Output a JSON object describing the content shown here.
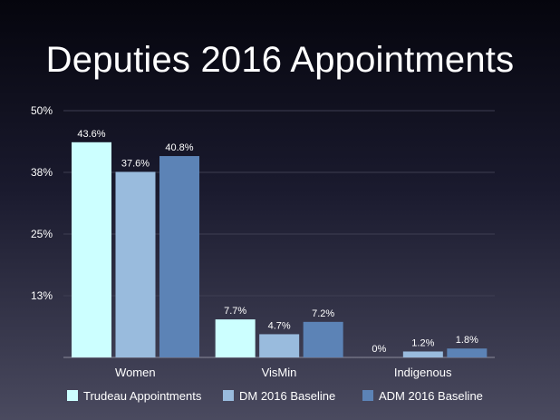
{
  "title": "Deputies 2016 Appointments",
  "chart_data": {
    "type": "bar",
    "title": "Deputies 2016 Appointments",
    "categories": [
      "Women",
      "VisMin",
      "Indigenous"
    ],
    "series": [
      {
        "name": "Trudeau Appointments",
        "color": "#ccffff",
        "values": [
          43.6,
          7.7,
          0
        ],
        "labels": [
          "43.6%",
          "7.7%",
          "0%"
        ]
      },
      {
        "name": "DM 2016 Baseline",
        "color": "#99bbdd",
        "values": [
          37.6,
          4.7,
          1.2
        ],
        "labels": [
          "37.6%",
          "4.7%",
          "1.2%"
        ]
      },
      {
        "name": "ADM 2016 Baseline",
        "color": "#5c83b6",
        "values": [
          40.8,
          7.2,
          1.8
        ],
        "labels": [
          "40.8%",
          "7.2%",
          "1.8%"
        ]
      }
    ],
    "yticks": [
      {
        "value": 0,
        "label": ""
      },
      {
        "value": 12.5,
        "label": "13%"
      },
      {
        "value": 25,
        "label": "25%"
      },
      {
        "value": 37.5,
        "label": "38%"
      },
      {
        "value": 50,
        "label": "50%"
      }
    ],
    "ylim": [
      0,
      50
    ],
    "grid": true,
    "legend_position": "bottom"
  }
}
